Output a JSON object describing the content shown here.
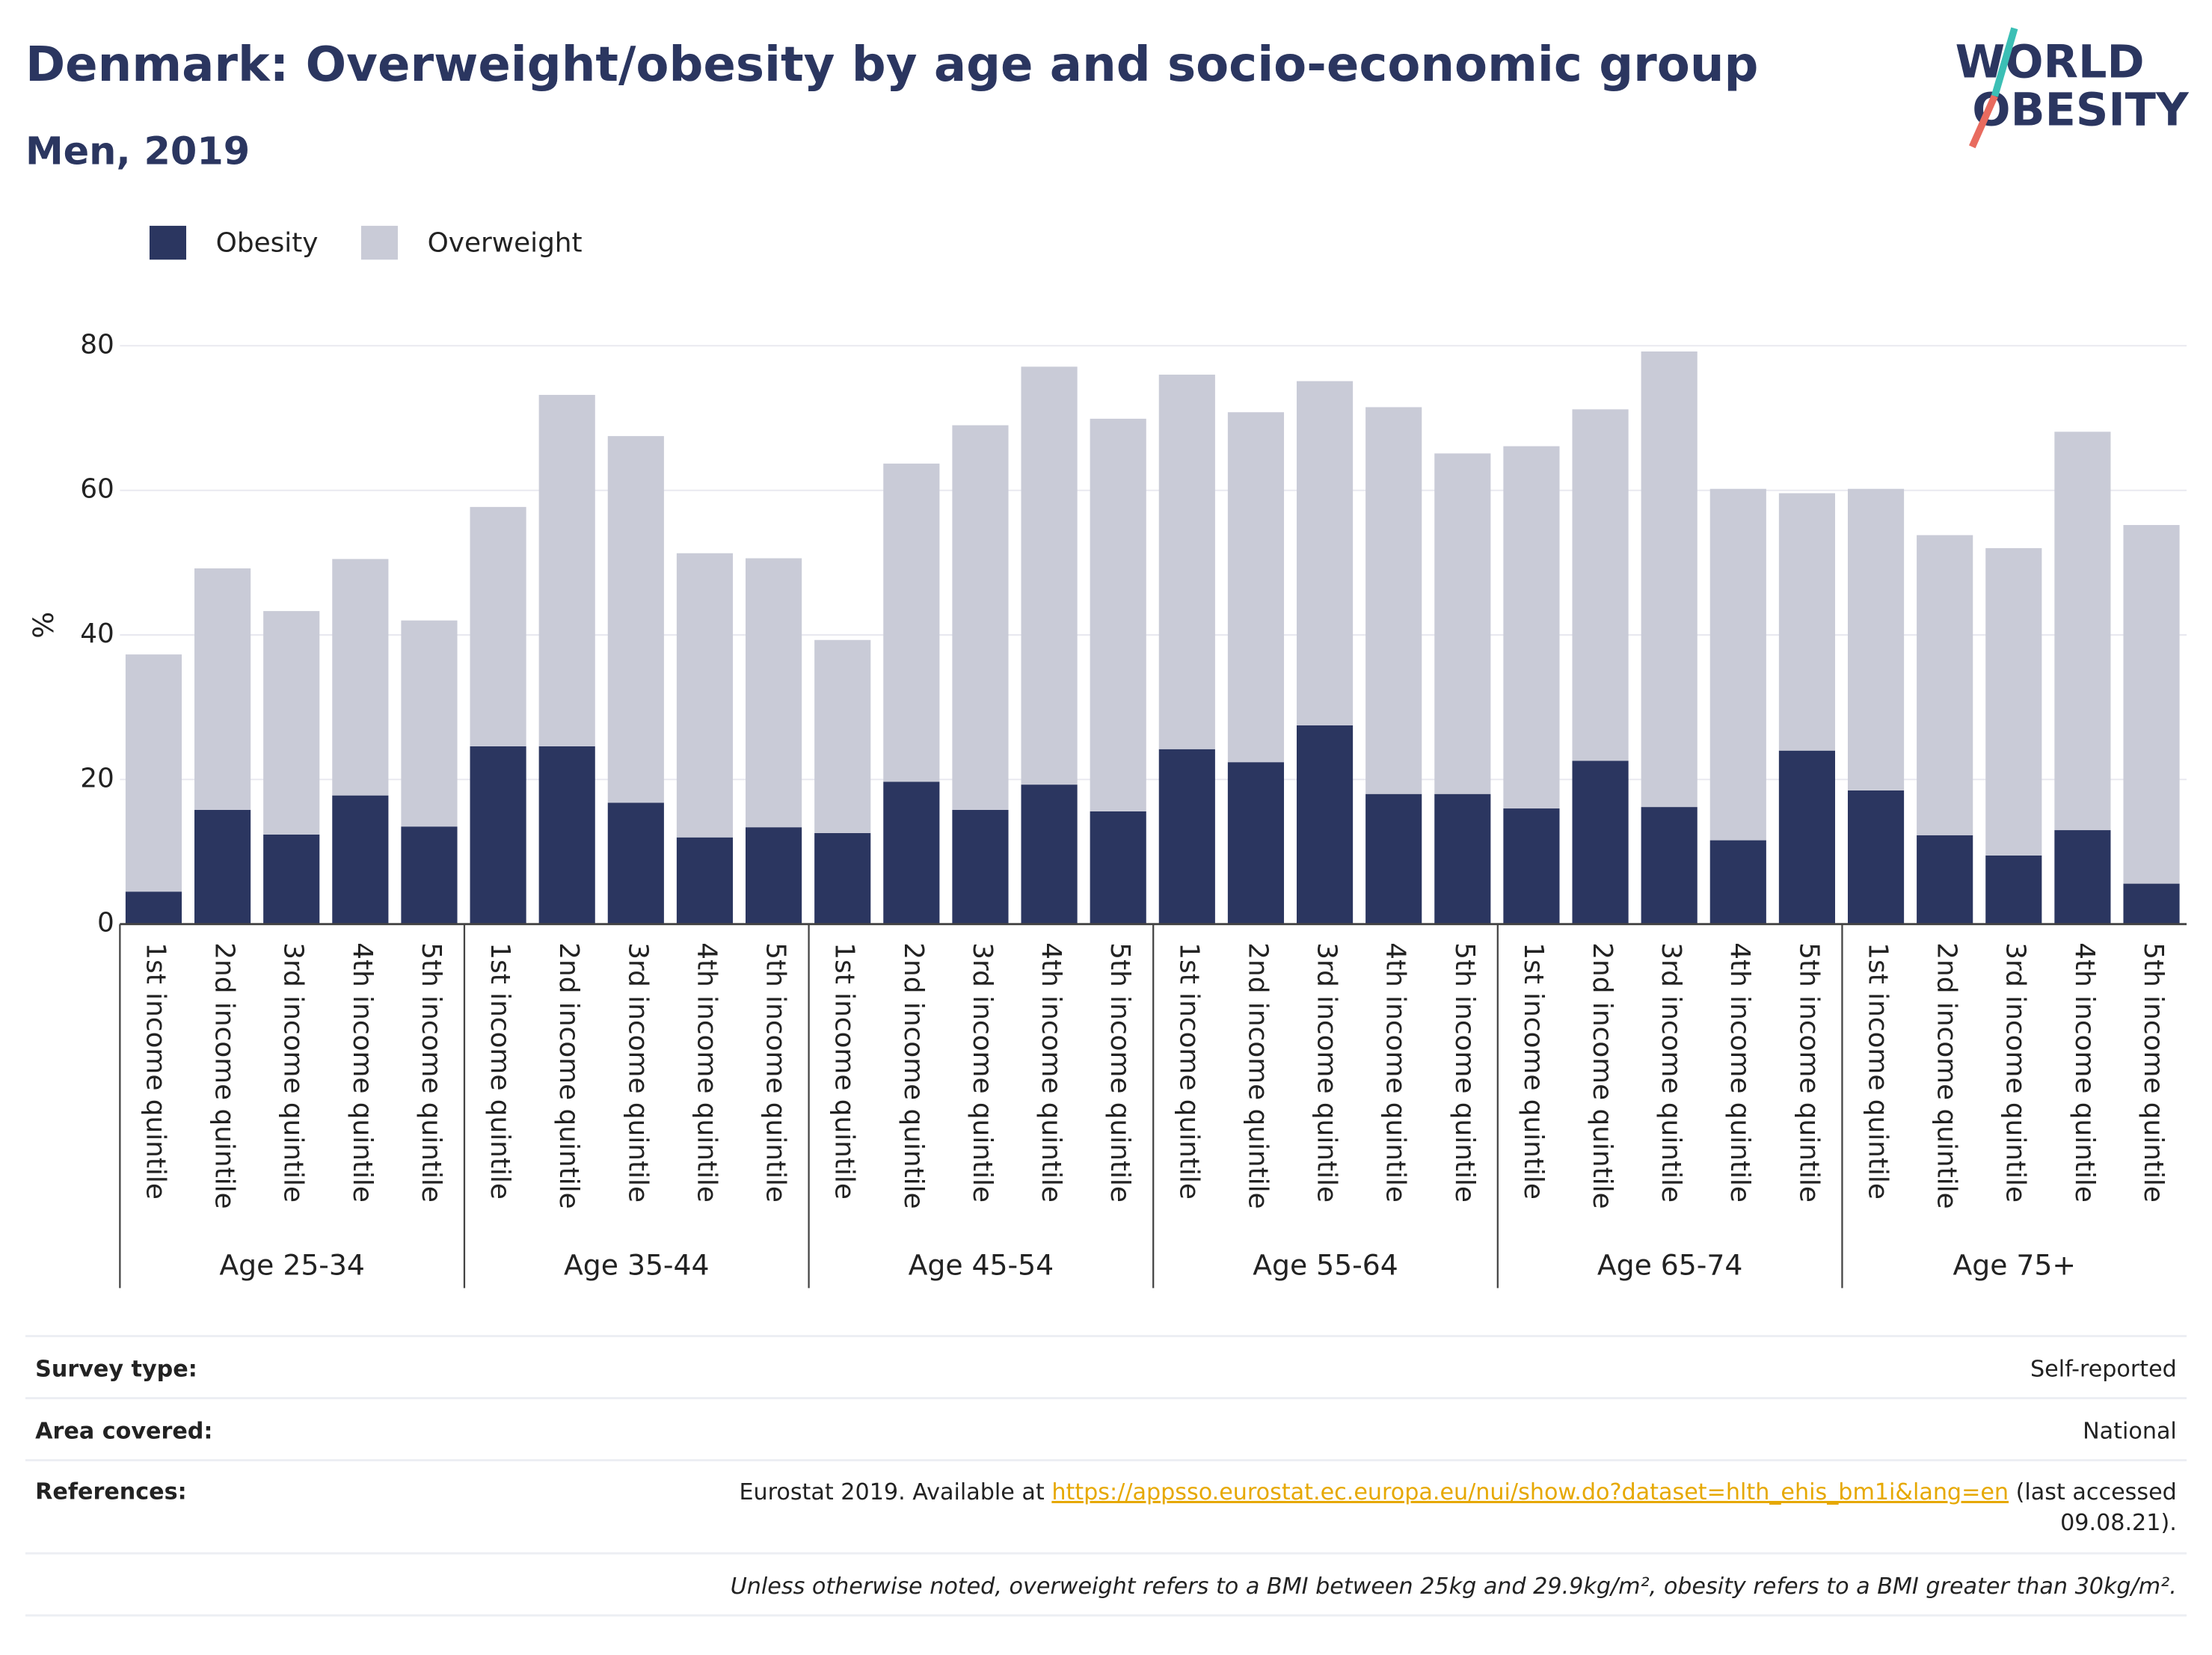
{
  "chart_data": {
    "type": "stacked_bar",
    "title": "Denmark: Overweight/obesity by age and socio-economic group",
    "subtitle": "Men, 2019",
    "y_label": "%",
    "logo": [
      "WORLD",
      "OBESITY"
    ],
    "groups": [
      "Age 25-34",
      "Age 35-44",
      "Age 45-54",
      "Age 55-64",
      "Age 65-74",
      "Age 75+"
    ],
    "categories": [
      "1st income quintile",
      "2nd income quintile",
      "3rd income quintile",
      "4th income quintile",
      "5th income quintile",
      "1st income quintile",
      "2nd income quintile",
      "3rd income quintile",
      "4th income quintile",
      "5th income quintile",
      "1st income quintile",
      "2nd income quintile",
      "3rd income quintile",
      "4th income quintile",
      "5th income quintile",
      "1st income quintile",
      "2nd income quintile",
      "3rd income quintile",
      "4th income quintile",
      "5th income quintile",
      "1st income quintile",
      "2nd income quintile",
      "3rd income quintile",
      "4th income quintile",
      "5th income quintile",
      "1st income quintile",
      "2nd income quintile",
      "3rd income quintile",
      "4th income quintile",
      "5th income quintile"
    ],
    "series": [
      {
        "name": "Obesity",
        "color": "#2b3660",
        "values": [
          4.5,
          15.8,
          12.4,
          17.8,
          13.5,
          24.6,
          24.6,
          16.8,
          12,
          13.4,
          12.6,
          19.7,
          15.8,
          19.3,
          15.6,
          24.2,
          22.4,
          27.5,
          18,
          18,
          16,
          22.6,
          16.2,
          11.6,
          24,
          18.5,
          12.3,
          9.5,
          13,
          5.6
        ]
      },
      {
        "name": "Overweight",
        "color": "#c9cbd7",
        "values": [
          32.8,
          33.4,
          30.9,
          32.7,
          28.5,
          33.1,
          48.6,
          50.7,
          39.3,
          37.2,
          26.7,
          44,
          53.2,
          57.8,
          54.3,
          51.8,
          48.4,
          47.6,
          53.5,
          47.1,
          50.1,
          48.6,
          63,
          48.6,
          35.6,
          41.7,
          41.5,
          42.5,
          55.1,
          49.6
        ]
      }
    ],
    "ylim": [
      0,
      80
    ],
    "yticks": [
      0,
      20,
      40,
      60,
      80
    ],
    "grid": true,
    "legend": "top-left",
    "footer": {
      "survey_type": [
        "Survey type:",
        "Self-reported"
      ],
      "area_covered": [
        "Area covered:",
        "National"
      ],
      "references": [
        "References:",
        "Eurostat 2019. Available at ",
        "https://appsso.eurostat.ec.europa.eu/nui/show.do?dataset=hlth_ehis_bm1i&lang=en",
        " (last accessed",
        "09.08.21)."
      ],
      "note": "Unless otherwise noted, overweight refers to a BMI between 25kg and 29.9kg/m², obesity refers to a BMI greater than 30kg/m²."
    }
  }
}
